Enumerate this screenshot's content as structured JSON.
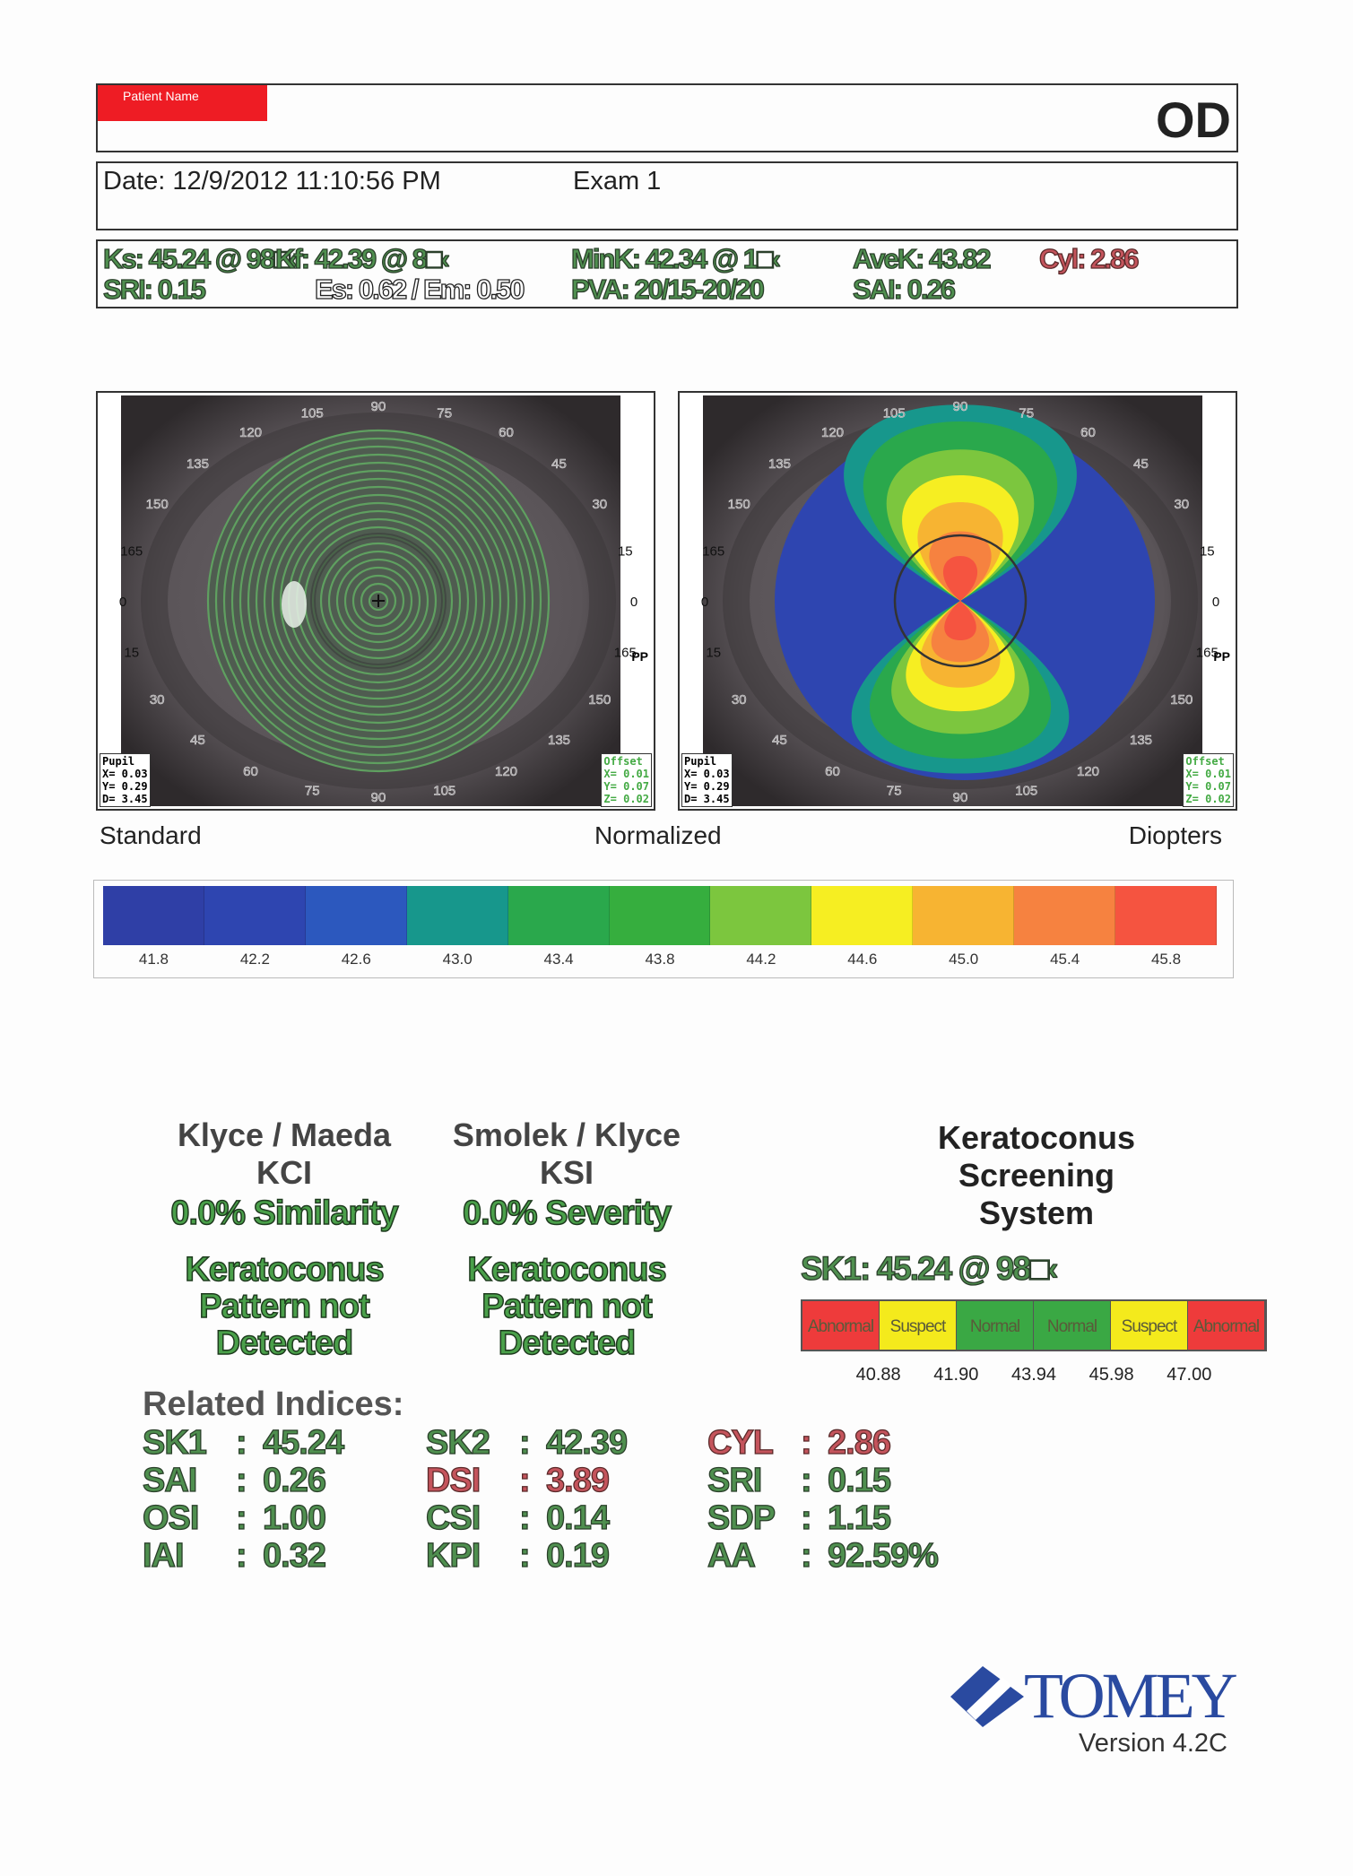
{
  "header": {
    "patient_label": "Patient Name",
    "eye": "OD"
  },
  "exam": {
    "date": "Date: 12/9/2012 11:10:56 PM",
    "exam": "Exam 1"
  },
  "kvalues": {
    "ks": "Ks: 45.24 @  98□‹",
    "kf": "Kf: 42.39 @  8□‹",
    "mink": "MinK: 42.34 @  1□‹",
    "avek": "AveK: 43.82",
    "cyl": "Cyl:  2.86",
    "sri": "SRI: 0.15",
    "es": "Es: 0.62 / Em: 0.50",
    "pva": "PVA: 20/15-20/20",
    "sai": "SAI: 0.26"
  },
  "maps": {
    "left_title": "Standard",
    "center_title": "Normalized",
    "right_title": "Diopters",
    "pp": "PP",
    "pupil": {
      "label": "Pupil",
      "x": "X= 0.03",
      "y": "Y= 0.29",
      "d": "D= 3.45"
    },
    "offset": {
      "label": "Offset",
      "x": "X= 0.01",
      "y": "Y= 0.07",
      "z": "Z= 0.02"
    }
  },
  "colorscale": {
    "labels": [
      "41.8",
      "42.2",
      "42.6",
      "43.0",
      "43.4",
      "43.8",
      "44.2",
      "44.6",
      "45.0",
      "45.4",
      "45.8"
    ],
    "colors": [
      "#2f3fa6",
      "#2e45b0",
      "#2c58be",
      "#17978c",
      "#2aa84c",
      "#36ae3e",
      "#7cc63e",
      "#f6ee22",
      "#f7b432",
      "#f68240",
      "#f55440"
    ]
  },
  "klyce": {
    "title1": "Klyce / Maeda",
    "title2": "KCI",
    "result": "0.0% Similarity",
    "pattern": [
      "Keratoconus",
      "Pattern not",
      "Detected"
    ]
  },
  "smolek": {
    "title1": "Smolek / Klyce",
    "title2": "KSI",
    "result": "0.0% Severity",
    "pattern": [
      "Keratoconus",
      "Pattern not",
      "Detected"
    ]
  },
  "kss": {
    "title": [
      "Keratoconus",
      "Screening",
      "System"
    ],
    "sk1": "SK1: 45.24 @ 98□‹",
    "bands": [
      {
        "label": "Abnormal",
        "color": "#ee3b3b"
      },
      {
        "label": "Suspect",
        "color": "#f4ea1c"
      },
      {
        "label": "Normal",
        "color": "#3aa844"
      },
      {
        "label": "Normal",
        "color": "#3aa844"
      },
      {
        "label": "Suspect",
        "color": "#f4ea1c"
      },
      {
        "label": "Abnormal",
        "color": "#ee3b3b"
      }
    ],
    "thresholds": [
      "40.88",
      "41.90",
      "43.94",
      "45.98",
      "47.00"
    ]
  },
  "related": {
    "title": "Related Indices:",
    "columns": [
      [
        {
          "name": "SK1",
          "value": "45.24",
          "alert": false
        },
        {
          "name": "SAI",
          "value": "0.26",
          "alert": false
        },
        {
          "name": "OSI",
          "value": "1.00",
          "alert": false
        },
        {
          "name": "IAI",
          "value": "0.32",
          "alert": false
        }
      ],
      [
        {
          "name": "SK2",
          "value": "42.39",
          "alert": false
        },
        {
          "name": "DSI",
          "value": "3.89",
          "alert": true
        },
        {
          "name": "CSI",
          "value": "0.14",
          "alert": false
        },
        {
          "name": "KPI",
          "value": "0.19",
          "alert": false
        }
      ],
      [
        {
          "name": "CYL",
          "value": "2.86",
          "alert": true
        },
        {
          "name": "SRI",
          "value": "0.15",
          "alert": false
        },
        {
          "name": "SDP",
          "value": "1.15",
          "alert": false
        },
        {
          "name": "AA",
          "value": "92.59%",
          "alert": false
        }
      ]
    ]
  },
  "brand": {
    "name": "TOMEY",
    "version": "Version 4.2C",
    "color": "#2a4aa0"
  }
}
